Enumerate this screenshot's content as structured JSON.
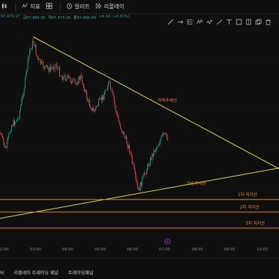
{
  "toolbar": {
    "items": [
      {
        "label": "",
        "icon": "candle-type-icon"
      },
      {
        "label": "지표",
        "icon": "indicator-icon"
      },
      {
        "label": "",
        "icon": "layout-icon"
      },
      {
        "label": "얼러트",
        "icon": "alert-clock-icon"
      },
      {
        "label": "리플레이",
        "icon": "replay-icon"
      }
    ]
  },
  "ohlc": {
    "partial_value": "97,473.17",
    "high_key": "고",
    "high": "97,489.39",
    "low_key": "저",
    "low": "97,473.16",
    "close_key": "종",
    "close": "97,480.09",
    "change": "+6.92 (+0.01%)"
  },
  "drawing_tools": [
    "line-icon",
    "ray-icon",
    "fib-icon",
    "pattern-icon",
    "path-icon",
    "brush-icon",
    "text-icon",
    "frame-icon",
    "note-icon",
    "copy-icon",
    "delete-icon"
  ],
  "annotations": {
    "downtrend": "하락추세선",
    "uptrend": "상승추세선",
    "support1": "1차 지지선",
    "support2": "2차 지지선",
    "support3": "3차 지지선"
  },
  "colors": {
    "up": "#26a69a",
    "down": "#ef5350",
    "trendline": "#e8e05a",
    "support": "#f0883e",
    "annotation_text": "#f0883e"
  },
  "x_axis": {
    "ticks": [
      "2:00",
      "03:00",
      "04:00",
      "05:00",
      "06:00",
      "07:00",
      "08:00",
      "09:00",
      "10:00"
    ]
  },
  "bottom_tabs": [
    "터",
    "리플레이 트레이딩 패널",
    "트레이딩패널"
  ]
}
